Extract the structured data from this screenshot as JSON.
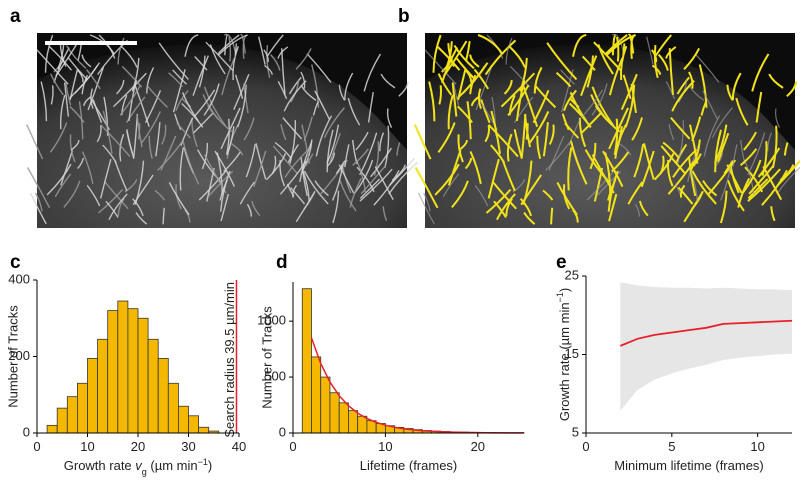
{
  "panels": [
    "a",
    "b",
    "c",
    "d",
    "e"
  ],
  "chart_data": [
    {
      "type": "histogram",
      "y_label": "Number of Tracks",
      "x_label_parts": [
        "Growth rate ",
        "v",
        "g",
        " (µm min",
        "−1",
        ")"
      ],
      "bins": [
        2,
        4,
        6,
        8,
        10,
        12,
        14,
        16,
        18,
        20,
        22,
        24,
        26,
        28,
        30,
        32,
        34,
        36
      ],
      "counts": [
        20,
        65,
        95,
        130,
        195,
        245,
        320,
        345,
        325,
        300,
        245,
        195,
        130,
        70,
        45,
        15,
        5
      ],
      "color": "#f5b800",
      "xlim": [
        0,
        40
      ],
      "xticks": [
        0,
        10,
        20,
        30,
        40
      ],
      "ylim": [
        0,
        400
      ],
      "yticks": [
        0,
        200,
        400
      ],
      "reference_line": {
        "x": 39.5,
        "label": "Search radius 39.5 µm/min",
        "color": "#e8202a"
      }
    },
    {
      "type": "histogram",
      "y_label": "Number of Tracks",
      "x_label": "Lifetime (frames)",
      "bins": [
        1,
        2,
        3,
        4,
        5,
        6,
        7,
        8,
        9,
        10,
        11,
        12,
        13,
        14,
        15,
        16,
        17,
        18,
        19,
        20,
        21,
        22,
        23,
        24,
        25
      ],
      "counts": [
        1290,
        680,
        500,
        360,
        270,
        200,
        150,
        110,
        85,
        65,
        50,
        40,
        30,
        22,
        17,
        13,
        10,
        8,
        6,
        5,
        4,
        3,
        2,
        2
      ],
      "color": "#f5b800",
      "fit": {
        "x": [
          2,
          3,
          4,
          5,
          6,
          7,
          8,
          9,
          10,
          11,
          12,
          14,
          16,
          18,
          20,
          22,
          25
        ],
        "values": [
          850,
          622,
          455,
          333,
          244,
          178,
          130,
          95,
          70,
          51,
          37,
          20,
          11,
          5.7,
          3,
          1.6,
          0.6
        ],
        "color": "#e8202a"
      },
      "xlim": [
        0,
        25
      ],
      "xticks": [
        0,
        10,
        20
      ],
      "ylim": [
        0,
        1350
      ],
      "yticks": [
        0,
        500,
        1000
      ]
    },
    {
      "type": "line",
      "y_label_parts": [
        "Growth rate (µm min",
        "−1",
        ")"
      ],
      "x_label": "Minimum lifetime (frames)",
      "x": [
        2,
        3,
        4,
        5,
        6,
        7,
        8,
        9,
        10,
        11,
        12
      ],
      "values": [
        16.1,
        17.0,
        17.5,
        17.8,
        18.1,
        18.4,
        18.9,
        19.0,
        19.1,
        19.2,
        19.3
      ],
      "color": "#e8202a",
      "band": {
        "lower": [
          7.8,
          10.5,
          11.8,
          12.6,
          13.2,
          13.7,
          14.3,
          14.6,
          14.8,
          15.0,
          15.1
        ],
        "upper": [
          24.2,
          23.8,
          23.6,
          23.5,
          23.5,
          23.4,
          23.5,
          23.4,
          23.3,
          23.3,
          23.2
        ],
        "color": "#e6e6e6"
      },
      "xlim": [
        0,
        12
      ],
      "xticks": [
        0,
        5,
        10
      ],
      "ylim": [
        5,
        25
      ],
      "yticks": [
        5,
        15,
        25
      ]
    }
  ]
}
